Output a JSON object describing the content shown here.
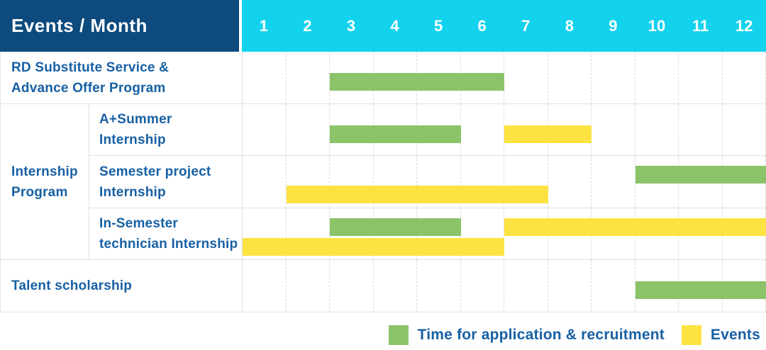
{
  "header": {
    "label": "Events / Month",
    "months": [
      "1",
      "2",
      "3",
      "4",
      "5",
      "6",
      "7",
      "8",
      "9",
      "10",
      "11",
      "12"
    ]
  },
  "group_cell": {
    "line1": "Internship",
    "line2": "Program"
  },
  "legend": {
    "items": [
      {
        "key": "recruitment",
        "label": "Time for application & recruitment",
        "color": "#8bc369"
      },
      {
        "key": "event",
        "label": "Events",
        "color": "#fde342"
      }
    ]
  },
  "colors": {
    "header_navy": "#0d4a7d",
    "header_cyan": "#13d2ee",
    "label_blue": "#1760a4",
    "recruitment_green": "#8bc369",
    "event_yellow": "#fde342"
  },
  "chart_data": {
    "type": "bar",
    "subtype": "gantt-schedule",
    "title": "Events / Month",
    "x_categories": [
      "1",
      "2",
      "3",
      "4",
      "5",
      "6",
      "7",
      "8",
      "9",
      "10",
      "11",
      "12"
    ],
    "x_range": [
      1,
      12
    ],
    "grid": true,
    "legend_position": "bottom-right",
    "series": [
      {
        "key": "recruitment",
        "name": "Time for application & recruitment",
        "color": "#8bc369"
      },
      {
        "key": "event",
        "name": "Events",
        "color": "#fde342"
      }
    ],
    "rows": [
      {
        "group": "",
        "label": "RD Substitute Service & Advance Offer Program",
        "label_lines": [
          "RD Substitute Service &",
          "Advance Offer Program"
        ],
        "bars": [
          {
            "series": "recruitment",
            "start": 3,
            "end": 6,
            "line": 0
          }
        ]
      },
      {
        "group": "Internship Program",
        "label": "A+Summer Internship",
        "label_lines": [
          "A+Summer",
          "Internship"
        ],
        "bars": [
          {
            "series": "recruitment",
            "start": 3,
            "end": 5,
            "line": 0
          },
          {
            "series": "event",
            "start": 7,
            "end": 8,
            "line": 0
          }
        ]
      },
      {
        "group": "Internship Program",
        "label": "Semester project Internship",
        "label_lines": [
          "Semester project",
          "Internship"
        ],
        "bars": [
          {
            "series": "recruitment",
            "start": 10,
            "end": 12,
            "line": 0
          },
          {
            "series": "event",
            "start": 2,
            "end": 7,
            "line": 1
          }
        ]
      },
      {
        "group": "Internship Program",
        "label": "In-Semester technician Internship",
        "label_lines": [
          "In-Semester",
          "technician Internship"
        ],
        "bars": [
          {
            "series": "recruitment",
            "start": 3,
            "end": 5,
            "line": 0
          },
          {
            "series": "event",
            "start": 7,
            "end": 12,
            "line": 0
          },
          {
            "series": "event",
            "start": 1,
            "end": 6,
            "line": 1
          }
        ]
      },
      {
        "group": "",
        "label": "Talent scholarship",
        "label_lines": [
          "Talent scholarship"
        ],
        "bars": [
          {
            "series": "recruitment",
            "start": 10,
            "end": 12,
            "line": 0
          }
        ]
      }
    ]
  }
}
